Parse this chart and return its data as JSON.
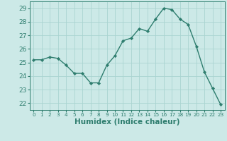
{
  "x": [
    0,
    1,
    2,
    3,
    4,
    5,
    6,
    7,
    8,
    9,
    10,
    11,
    12,
    13,
    14,
    15,
    16,
    17,
    18,
    19,
    20,
    21,
    22,
    23
  ],
  "y": [
    25.2,
    25.2,
    25.4,
    25.3,
    24.8,
    24.2,
    24.2,
    23.5,
    23.5,
    24.8,
    25.5,
    26.6,
    26.8,
    27.5,
    27.3,
    28.2,
    29.0,
    28.9,
    28.2,
    27.8,
    26.2,
    24.3,
    23.1,
    21.9
  ],
  "line_color": "#2e7d6e",
  "marker": "D",
  "marker_size": 2.2,
  "bg_color": "#cce9e7",
  "grid_color": "#aad4d1",
  "xlabel": "Humidex (Indice chaleur)",
  "ylim": [
    21.5,
    29.5
  ],
  "yticks": [
    22,
    23,
    24,
    25,
    26,
    27,
    28,
    29
  ],
  "xlim": [
    -0.5,
    23.5
  ],
  "xticks": [
    0,
    1,
    2,
    3,
    4,
    5,
    6,
    7,
    8,
    9,
    10,
    11,
    12,
    13,
    14,
    15,
    16,
    17,
    18,
    19,
    20,
    21,
    22,
    23
  ],
  "tick_color": "#2e7d6e",
  "xlabel_fontsize": 7.5,
  "tick_fontsize": 6.5,
  "xtick_fontsize": 5.2,
  "linewidth": 1.0
}
